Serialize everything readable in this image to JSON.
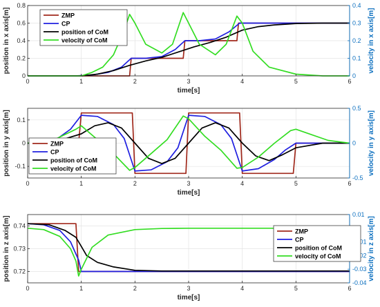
{
  "chart_data": [
    {
      "type": "line",
      "xlabel": "time[s]",
      "ylabel": "position in x axis[m]",
      "ylabel_right": "velocity in x axis[m]",
      "xlim": [
        0,
        6
      ],
      "ylim": [
        0,
        0.8
      ],
      "ylim_right": [
        0,
        0.4
      ],
      "xticks": [
        "0",
        "1",
        "2",
        "3",
        "4",
        "5",
        "6"
      ],
      "yticks": [
        "0",
        "0.2",
        "0.4",
        "0.6",
        "0.8"
      ],
      "yticks_right": [
        "0",
        "0.1",
        "0.2",
        "0.3",
        "0.4"
      ],
      "grid": true,
      "legend_position": "top-left",
      "legend": [
        "ZMP",
        "CP",
        "position of CoM",
        "velocity of CoM"
      ],
      "series": [
        {
          "name": "ZMP",
          "axis": "left",
          "color": "#a0281b",
          "x": [
            0,
            1.9,
            1.93,
            2.9,
            2.93,
            3.9,
            3.93,
            6
          ],
          "y": [
            0,
            0,
            0.2,
            0.2,
            0.4,
            0.4,
            0.6,
            0.6
          ]
        },
        {
          "name": "CP",
          "axis": "left",
          "color": "#1f1fe0",
          "x": [
            0,
            0.9,
            1.2,
            1.5,
            1.75,
            1.93,
            2.2,
            2.5,
            2.75,
            2.93,
            3.2,
            3.5,
            3.75,
            3.95,
            4.3,
            6
          ],
          "y": [
            0,
            0,
            0.01,
            0.04,
            0.1,
            0.2,
            0.2,
            0.22,
            0.3,
            0.4,
            0.4,
            0.42,
            0.5,
            0.6,
            0.6,
            0.6
          ]
        },
        {
          "name": "position of CoM",
          "axis": "left",
          "color": "#000000",
          "x": [
            0,
            1,
            1.3,
            1.6,
            1.9,
            2.2,
            2.5,
            2.8,
            3.1,
            3.4,
            3.7,
            4,
            4.3,
            4.6,
            5,
            5.5,
            6
          ],
          "y": [
            0,
            0,
            0.02,
            0.06,
            0.12,
            0.17,
            0.21,
            0.27,
            0.33,
            0.38,
            0.44,
            0.52,
            0.56,
            0.58,
            0.595,
            0.6,
            0.6
          ]
        },
        {
          "name": "velocity of CoM",
          "axis": "right",
          "color": "#33dd22",
          "x": [
            0,
            1,
            1.2,
            1.4,
            1.6,
            1.8,
            1.9,
            2.0,
            2.2,
            2.5,
            2.7,
            2.9,
            3.0,
            3.2,
            3.5,
            3.7,
            3.9,
            4.0,
            4.2,
            4.5,
            5,
            5.5,
            6
          ],
          "y": [
            0,
            0,
            0.02,
            0.05,
            0.12,
            0.26,
            0.35,
            0.3,
            0.18,
            0.13,
            0.18,
            0.36,
            0.3,
            0.18,
            0.12,
            0.18,
            0.34,
            0.3,
            0.14,
            0.05,
            0.01,
            0,
            0
          ]
        }
      ]
    },
    {
      "type": "line",
      "xlabel": "time[s]",
      "ylabel": "position in y axis[m]",
      "ylabel_right": "velocity in y axis[m]",
      "xlim": [
        0,
        6
      ],
      "ylim": [
        -0.15,
        0.15
      ],
      "ylim_right": [
        -0.5,
        0.5
      ],
      "xticks": [
        "0",
        "1",
        "2",
        "3",
        "4",
        "5",
        "6"
      ],
      "yticks": [
        "-0.1",
        "0",
        "0.1"
      ],
      "yticks_right": [
        "-0.5",
        "0",
        "0.5"
      ],
      "grid": true,
      "legend_position": "bottom-left",
      "legend": [
        "ZMP",
        "CP",
        "position of CoM",
        "velocity of CoM"
      ],
      "series": [
        {
          "name": "ZMP",
          "axis": "left",
          "color": "#a0281b",
          "x": [
            0,
            0.95,
            1,
            1.95,
            2,
            2.95,
            3,
            3.95,
            4,
            4.95,
            5,
            6
          ],
          "y": [
            0,
            0,
            0.13,
            0.13,
            -0.13,
            -0.13,
            0.13,
            0.13,
            -0.13,
            -0.13,
            0,
            0
          ]
        },
        {
          "name": "CP",
          "axis": "left",
          "color": "#1f1fe0",
          "x": [
            0,
            0.5,
            0.8,
            1,
            1.3,
            1.6,
            1.8,
            2,
            2.3,
            2.6,
            2.8,
            3,
            3.3,
            3.6,
            3.8,
            4,
            4.3,
            4.6,
            4.8,
            5,
            5.5,
            6
          ],
          "y": [
            0,
            0.01,
            0.06,
            0.12,
            0.115,
            0.08,
            0.02,
            -0.12,
            -0.115,
            -0.08,
            -0.02,
            0.12,
            0.115,
            0.08,
            0.02,
            -0.12,
            -0.11,
            -0.07,
            -0.03,
            0,
            0,
            0
          ]
        },
        {
          "name": "position of CoM",
          "axis": "left",
          "color": "#000000",
          "x": [
            0,
            0.5,
            1,
            1.25,
            1.5,
            1.75,
            2,
            2.25,
            2.5,
            2.75,
            3,
            3.25,
            3.5,
            3.75,
            4,
            4.25,
            4.5,
            4.75,
            5,
            5.5,
            6
          ],
          "y": [
            0,
            0.005,
            0.04,
            0.075,
            0.088,
            0.065,
            0,
            -0.065,
            -0.088,
            -0.065,
            0,
            0.065,
            0.088,
            0.065,
            0,
            -0.055,
            -0.075,
            -0.05,
            -0.02,
            0,
            0
          ]
        },
        {
          "name": "velocity of CoM",
          "axis": "right",
          "color": "#33dd22",
          "x": [
            0,
            0.5,
            0.9,
            1,
            1.3,
            1.6,
            1.9,
            2,
            2.3,
            2.6,
            2.9,
            3,
            3.3,
            3.6,
            3.9,
            4,
            4.3,
            4.6,
            4.9,
            5,
            5.3,
            5.6,
            6
          ],
          "y": [
            0,
            0.05,
            0.2,
            0.25,
            0.05,
            -0.15,
            -0.39,
            -0.35,
            -0.15,
            0.05,
            0.39,
            0.35,
            0.1,
            -0.1,
            -0.36,
            -0.35,
            -0.2,
            0,
            0.18,
            0.2,
            0.12,
            0.04,
            0
          ]
        }
      ]
    },
    {
      "type": "line",
      "xlabel": "time[s]",
      "ylabel": "position in z axis[m]",
      "ylabel_right": "velocity in z axis[m]",
      "xlim": [
        0,
        6
      ],
      "ylim": [
        0.715,
        0.745
      ],
      "ylim_right": [
        -0.04,
        0.01
      ],
      "xticks": [
        "0",
        "1",
        "2",
        "3",
        "4",
        "5",
        "6"
      ],
      "yticks": [
        "0.72",
        "0.73",
        "0.74"
      ],
      "yticks_right": [
        "-0.04",
        "-0.03",
        "-0.02",
        "-0.01",
        "0",
        "0.01"
      ],
      "grid": true,
      "legend_position": "bottom-right",
      "legend": [
        "ZMP",
        "CP",
        "position of CoM",
        "velocity of CoM"
      ],
      "series": [
        {
          "name": "ZMP",
          "axis": "left",
          "color": "#a0281b",
          "x": [
            0,
            0.9,
            0.95,
            6
          ],
          "y": [
            0.741,
            0.741,
            0.72,
            0.72
          ]
        },
        {
          "name": "CP",
          "axis": "left",
          "color": "#1f1fe0",
          "x": [
            0,
            0.3,
            0.6,
            0.8,
            0.95,
            1.0,
            6
          ],
          "y": [
            0.741,
            0.7405,
            0.738,
            0.733,
            0.725,
            0.72,
            0.72
          ]
        },
        {
          "name": "position of CoM",
          "axis": "left",
          "color": "#000000",
          "x": [
            0,
            0.4,
            0.7,
            0.9,
            1.0,
            1.1,
            1.3,
            1.6,
            2,
            2.5,
            6
          ],
          "y": [
            0.741,
            0.7405,
            0.738,
            0.735,
            0.731,
            0.727,
            0.724,
            0.722,
            0.7205,
            0.7202,
            0.7202
          ]
        },
        {
          "name": "velocity of CoM",
          "axis": "right",
          "color": "#33dd22",
          "x": [
            0,
            0.3,
            0.6,
            0.8,
            0.9,
            0.95,
            1.0,
            1.2,
            1.5,
            2,
            2.5,
            3,
            6
          ],
          "y": [
            0,
            -0.001,
            -0.006,
            -0.015,
            -0.024,
            -0.035,
            -0.03,
            -0.014,
            -0.005,
            -0.001,
            -0.0002,
            0,
            0
          ]
        }
      ]
    }
  ]
}
